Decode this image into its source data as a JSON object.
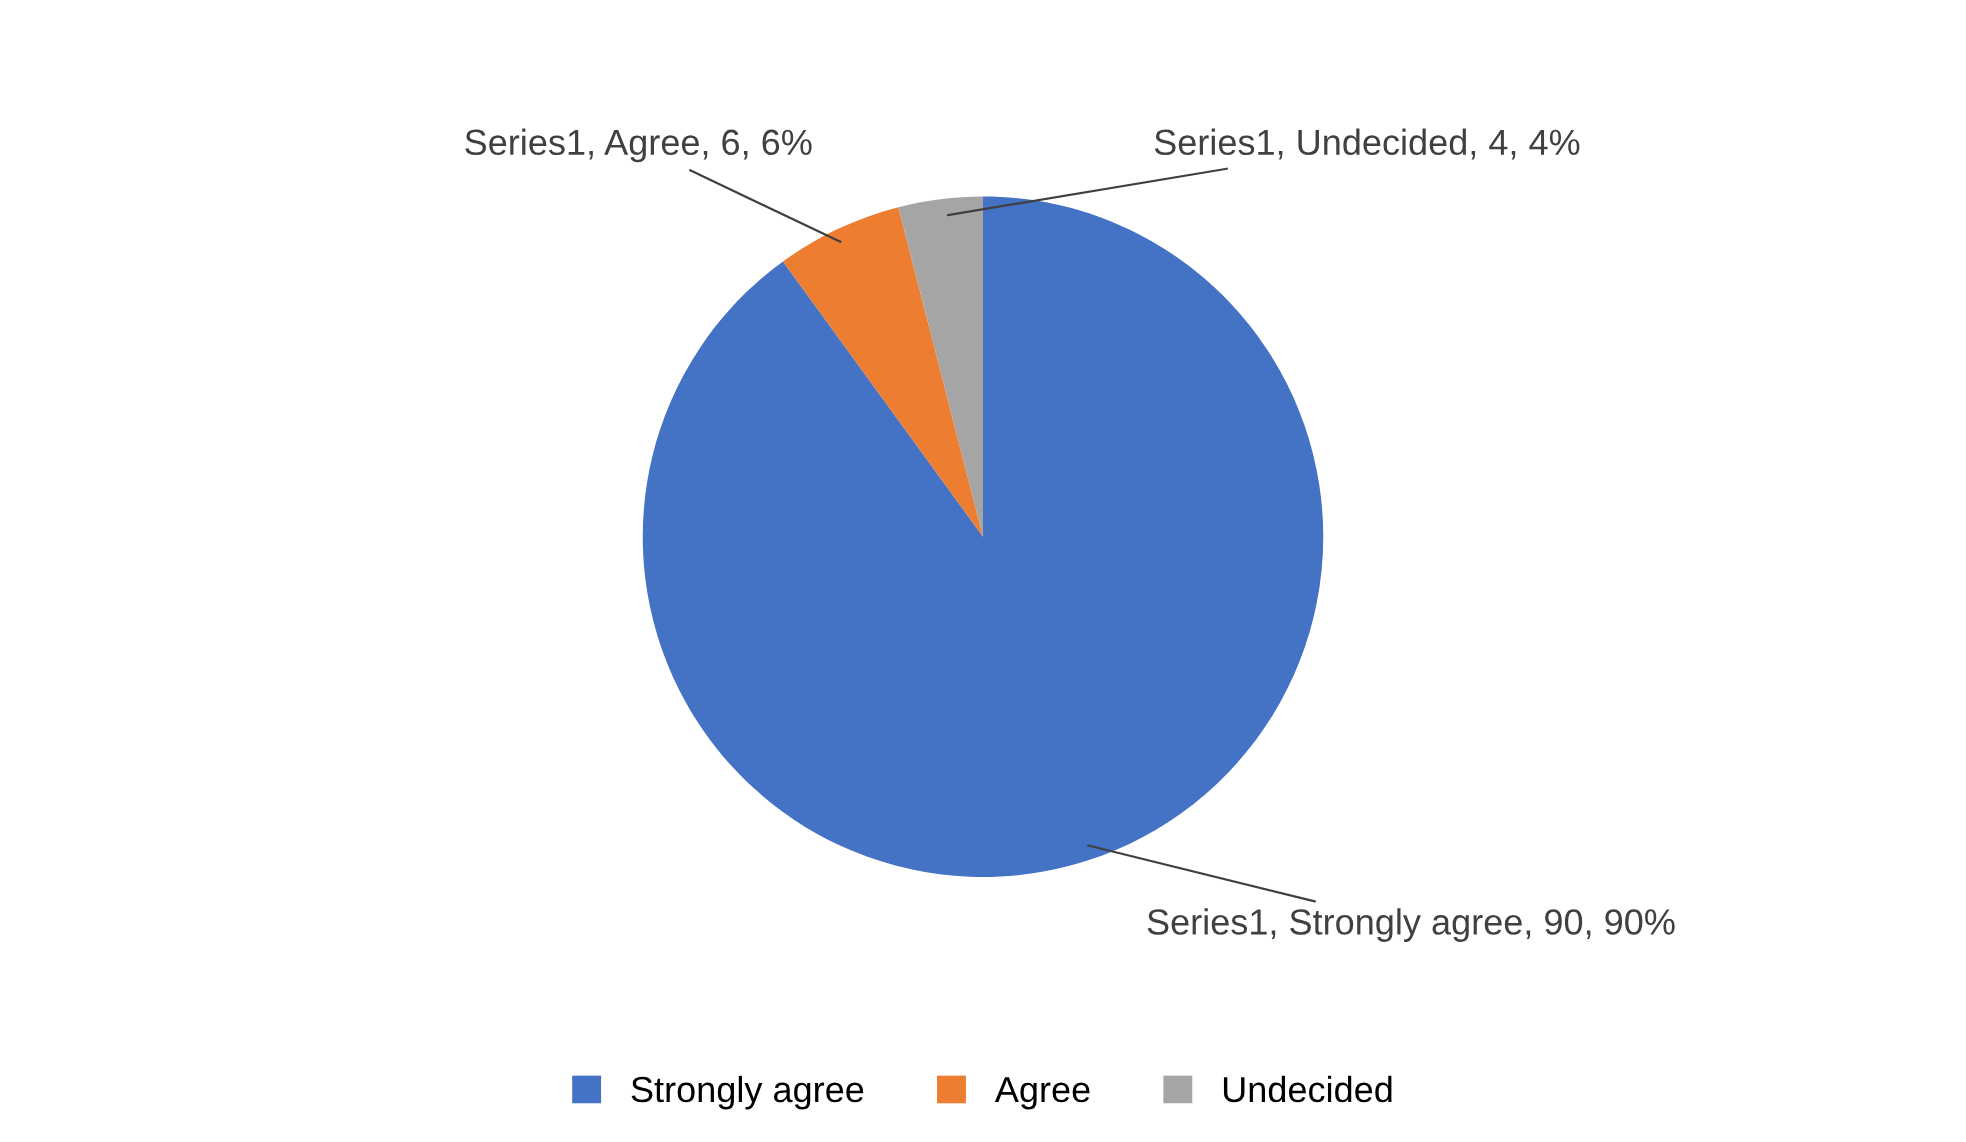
{
  "chart_data": {
    "type": "pie",
    "categories": [
      "Strongly agree",
      "Agree",
      "Undecided"
    ],
    "values": [
      90,
      6,
      4
    ],
    "colors": [
      "#4472c4",
      "#ed7d31",
      "#a5a5a5"
    ],
    "value_labels": [
      "Series1, Strongly agree, 90, 90%",
      "Series1, Agree, 6, 6%",
      "Series1, Undecided, 4, 4%"
    ],
    "legend": "bottom"
  }
}
